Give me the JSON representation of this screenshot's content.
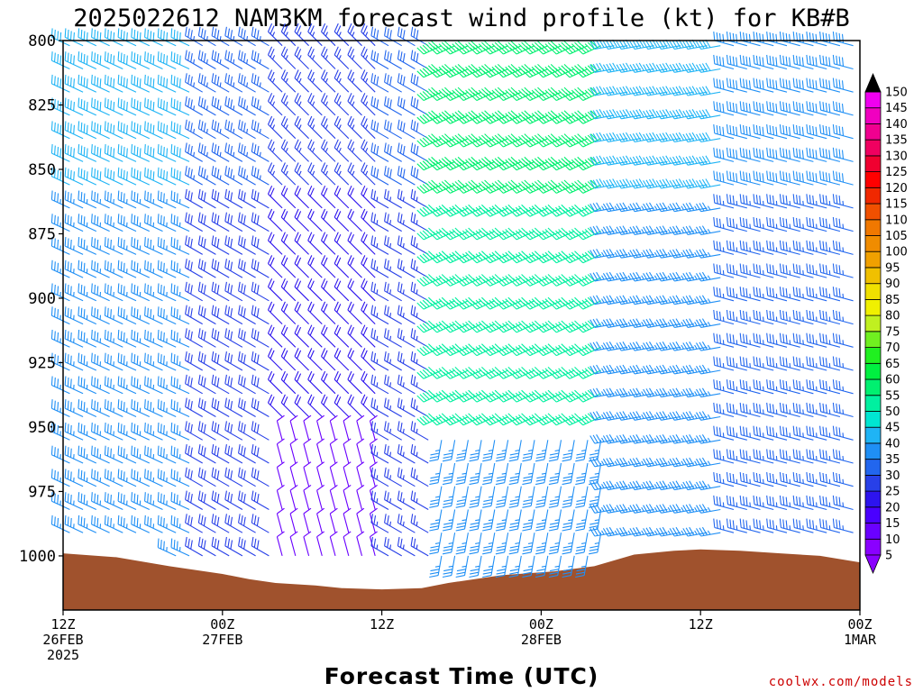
{
  "chart_data": {
    "type": "wind-barb-time-height",
    "title": "2025022612 NAM3KM forecast wind profile (kt) for KB#B",
    "xlabel": "Forecast Time (UTC)",
    "credit": "coolwx.com/models",
    "y_axis": {
      "scale": "pressure (hPa), inverted",
      "ylim": [
        1021,
        800
      ],
      "ticks": [
        "800",
        "825",
        "850",
        "875",
        "900",
        "925",
        "950",
        "975",
        "1000"
      ]
    },
    "x_axis": {
      "xlim_hours": [
        0,
        60
      ],
      "ticks": [
        {
          "hour": 0,
          "lines": [
            "12Z",
            "26FEB",
            "2025"
          ]
        },
        {
          "hour": 12,
          "lines": [
            "00Z",
            "27FEB"
          ]
        },
        {
          "hour": 24,
          "lines": [
            "12Z"
          ]
        },
        {
          "hour": 36,
          "lines": [
            "00Z",
            "28FEB"
          ]
        },
        {
          "hour": 48,
          "lines": [
            "12Z"
          ]
        },
        {
          "hour": 60,
          "lines": [
            "00Z",
            "1MAR"
          ]
        }
      ]
    },
    "colorbar": {
      "units": "kt",
      "levels": [
        5,
        10,
        15,
        20,
        25,
        30,
        35,
        40,
        45,
        50,
        55,
        60,
        65,
        70,
        75,
        80,
        85,
        90,
        95,
        100,
        105,
        110,
        115,
        120,
        125,
        130,
        135,
        140,
        145,
        150
      ],
      "colors": [
        "#8a00ff",
        "#6a00ff",
        "#4a00ff",
        "#2d14ee",
        "#2840e8",
        "#2266ee",
        "#1f8ff5",
        "#1fb4f5",
        "#00e6d2",
        "#00f0a0",
        "#00f070",
        "#00f040",
        "#20f020",
        "#70f020",
        "#c0f020",
        "#f0f000",
        "#f0e000",
        "#f0c000",
        "#f0a000",
        "#f08c00",
        "#f07800",
        "#f05000",
        "#f02800",
        "#ff0000",
        "#f00030",
        "#f00060",
        "#f00090",
        "#f000c0",
        "#f000f0",
        "#ff00ff"
      ]
    },
    "surface_pressure": [
      {
        "hour": 0,
        "p": 999
      },
      {
        "hour": 4,
        "p": 1000.5
      },
      {
        "hour": 8,
        "p": 1004
      },
      {
        "hour": 12,
        "p": 1007
      },
      {
        "hour": 14,
        "p": 1009
      },
      {
        "hour": 16,
        "p": 1010.5
      },
      {
        "hour": 19,
        "p": 1011.5
      },
      {
        "hour": 21,
        "p": 1012.5
      },
      {
        "hour": 24,
        "p": 1013
      },
      {
        "hour": 27,
        "p": 1012.5
      },
      {
        "hour": 29,
        "p": 1010.5
      },
      {
        "hour": 33,
        "p": 1007.5
      },
      {
        "hour": 37,
        "p": 1006
      },
      {
        "hour": 40,
        "p": 1004
      },
      {
        "hour": 43,
        "p": 999.5
      },
      {
        "hour": 46,
        "p": 998
      },
      {
        "hour": 48,
        "p": 997.5
      },
      {
        "hour": 51,
        "p": 998
      },
      {
        "hour": 54,
        "p": 999
      },
      {
        "hour": 57,
        "p": 1000
      },
      {
        "hour": 60,
        "p": 1002.5
      }
    ],
    "wind_regimes": [
      {
        "hour_range": [
          0,
          10
        ],
        "dir_deg": 295,
        "speed_kt": 35
      },
      {
        "hour_range": [
          10,
          16
        ],
        "dir_deg": 300,
        "speed_kt": 28
      },
      {
        "hour_range": [
          16,
          24
        ],
        "dir_deg": 315,
        "speed_kt": 20,
        "low_levels_dir_deg": 345,
        "low_levels_speed_kt": 10
      },
      {
        "hour_range": [
          24,
          28
        ],
        "dir_deg": 300,
        "speed_kt": 25
      },
      {
        "hour_range": [
          28,
          41
        ],
        "dir_deg": 245,
        "speed_kt": 52,
        "low_levels_dir_deg": 190,
        "low_levels_speed_kt": 35
      },
      {
        "hour_range": [
          41,
          50
        ],
        "dir_deg": 260,
        "speed_kt": 35
      },
      {
        "hour_range": [
          50,
          60
        ],
        "dir_deg": 285,
        "speed_kt": 33
      }
    ]
  }
}
